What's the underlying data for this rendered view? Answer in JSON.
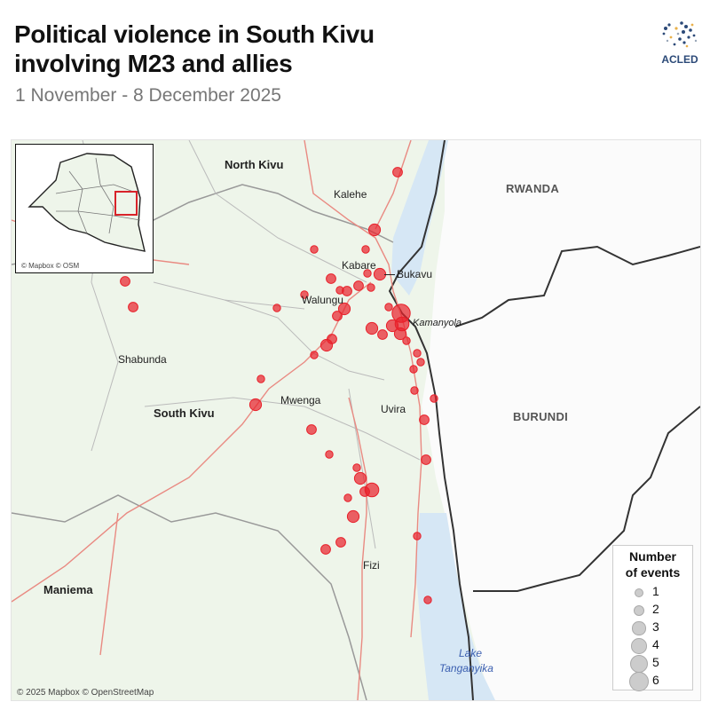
{
  "header": {
    "title_line1": "Political violence in South Kivu",
    "title_line2": "involving M23 and allies",
    "subtitle": "1 November - 8 December 2025",
    "logo_text": "ACLED"
  },
  "map": {
    "labels": {
      "north_kivu": "North Kivu",
      "kalehe": "Kalehe",
      "rwanda": "RWANDA",
      "kabare": "Kabare",
      "bukavu": "Bukavu",
      "walungu": "Walungu",
      "kamanyola": "Kamanyola",
      "shabunda": "Shabunda",
      "south_kivu": "South Kivu",
      "mwenga": "Mwenga",
      "uvira": "Uvira",
      "burundi": "BURUNDI",
      "fizi": "Fizi",
      "maniema": "Maniema",
      "lake_line1": "Lake",
      "lake_line2": "Tanganyika"
    },
    "attribution": "© 2025 Mapbox © OpenStreetMap",
    "inset_attribution": "© Mapbox © OSM",
    "marker_color": "#e8202a",
    "event_counts": [
      2,
      3,
      1,
      1,
      2,
      2,
      2,
      1,
      3,
      2,
      1,
      1,
      2,
      1,
      1,
      3,
      2,
      1,
      6,
      3,
      4,
      3,
      2,
      3,
      1,
      3,
      2,
      1,
      1,
      1,
      1,
      1,
      3,
      1,
      1,
      2,
      2,
      1,
      2,
      1,
      3,
      4,
      2,
      1,
      3,
      2,
      2,
      1,
      1
    ]
  },
  "legend": {
    "title_line1": "Number",
    "title_line2": "of events",
    "items": [
      "1",
      "2",
      "3",
      "4",
      "5",
      "6"
    ]
  }
}
